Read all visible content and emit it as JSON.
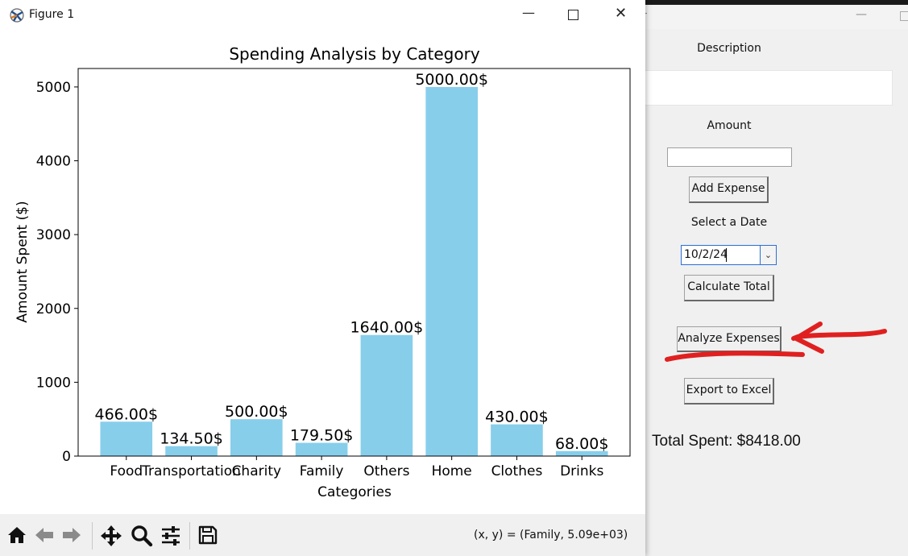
{
  "app": {
    "title_fragment": "r",
    "description_label": "Description",
    "amount_label": "Amount",
    "add_button": "Add Expense",
    "date_label": "Select a Date",
    "date_value": "10/2/24",
    "calculate_button": "Calculate Total",
    "analyze_button": "Analyze Expenses",
    "export_button": "Export to Excel",
    "total_text": "Total Spent: $8418.00"
  },
  "figure": {
    "window_title": "Figure 1",
    "coords_readout": "(x, y) = (Family, 5.09e+03)",
    "toolbar_icons": [
      "home-icon",
      "back-arrow-icon",
      "forward-arrow-icon",
      "pan-icon",
      "zoom-icon",
      "configure-subplots-icon",
      "save-icon"
    ]
  },
  "chart_data": {
    "type": "bar",
    "title": "Spending Analysis by Category",
    "xlabel": "Categories",
    "ylabel": "Amount Spent ($)",
    "categories": [
      "Food",
      "Transportation",
      "Charity",
      "Family",
      "Others",
      "Home",
      "Clothes",
      "Drinks"
    ],
    "values": [
      466.0,
      134.5,
      500.0,
      179.5,
      1640.0,
      5000.0,
      430.0,
      68.0
    ],
    "data_labels": [
      "466.00$",
      "134.50$",
      "500.00$",
      "179.50$",
      "1640.00$",
      "5000.00$",
      "430.00$",
      "68.00$"
    ],
    "yticks": [
      0,
      1000,
      2000,
      3000,
      4000,
      5000
    ],
    "ylim": [
      0,
      5250
    ],
    "bar_color": "#87ceeb",
    "grid": false
  },
  "annotation_color": "#e02020"
}
